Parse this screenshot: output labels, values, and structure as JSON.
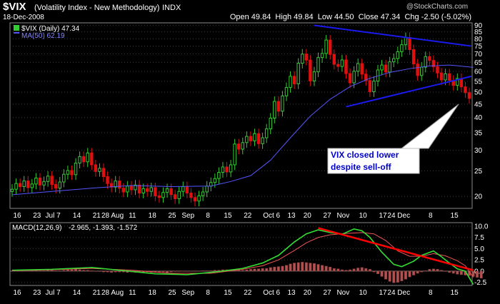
{
  "header": {
    "symbol": "$VIX",
    "name": "(Volatility Index - New Methodology)",
    "exchange": "INDX",
    "date": "18-Dec-2008",
    "watermark": "@StockCharts.com",
    "quote": "Open 49.84  High 49.84  Low 44.50  Close 47.34  Chg -2.50 (-5.02%)"
  },
  "legend": {
    "price_label": "$VIX (Daily) 47.34",
    "ma_label": "MA(50) 62.19",
    "macd_label": "MACD(12,26,9)",
    "macd_values": "-2.965, -1.393, -1.572"
  },
  "annotation": {
    "line1": "VIX closed lower",
    "line2": "despite sell-off"
  },
  "colors": {
    "background": "#000000",
    "up": "#33cc33",
    "down": "#e01010",
    "ma": "#5555ff",
    "trendline": "#1a1aee",
    "macd_line": "#33dd33",
    "signal_line": "#ee5555",
    "histogram": "#b35050",
    "macd_trend": "#ff0000",
    "grid": "#3a3a3a"
  },
  "chart_data": [
    {
      "type": "candlestick",
      "title": "$VIX (Daily) 47.34",
      "x_ticks": [
        "16",
        "23",
        "Jul 7",
        "14",
        "21",
        "28 Aug",
        "11",
        "18",
        "25",
        "Sep",
        "8",
        "15",
        "22",
        "Oct 6",
        "13",
        "20",
        "27",
        "Nov",
        "10",
        "17",
        "24 Dec",
        "8",
        "15"
      ],
      "y_scale": "log",
      "ylim": [
        18,
        92
      ],
      "y_ticks": [
        20,
        25,
        30,
        35,
        40,
        45,
        50,
        55,
        60,
        65,
        70,
        75,
        80,
        85,
        90
      ],
      "close": [
        21.3,
        22.4,
        21.8,
        22.9,
        21.6,
        22.3,
        23.5,
        22.1,
        22.8,
        23.9,
        22.2,
        21.5,
        22.7,
        24.3,
        25.1,
        24.2,
        26.8,
        28.4,
        27.1,
        29.3,
        26.4,
        24.9,
        25.6,
        23.8,
        22.4,
        21.7,
        22.9,
        21.5,
        20.8,
        21.9,
        21.2,
        22.1,
        20.6,
        21.4,
        20.9,
        21.6,
        20.1,
        19.8,
        20.7,
        21.4,
        20.3,
        19.6,
        20.9,
        21.8,
        20.6,
        19.8,
        19.2,
        20.1,
        20.8,
        21.9,
        22.6,
        23.4,
        24.7,
        25.9,
        24.8,
        26.4,
        31.7,
        30.3,
        32.1,
        33.9,
        32.6,
        34.7,
        31.8,
        33.5,
        36.2,
        39.8,
        46.1,
        42.3,
        48.4,
        52.1,
        57.5,
        53.8,
        64.5,
        69.9,
        66.3,
        55.2,
        59.8,
        67.8,
        70.3,
        79.1,
        69.7,
        63.9,
        62.7,
        66.4,
        58.9,
        54.3,
        60.1,
        64.3,
        58.6,
        55.4,
        50.2,
        55.1,
        60.8,
        63.5,
        59.7,
        65.3,
        67.2,
        71.4,
        75.9,
        80.9,
        72.7,
        64.1,
        57.9,
        62.3,
        68.4,
        66.1,
        62.5,
        59.2,
        55.7,
        58.8,
        55.5,
        53.1,
        56.4,
        52.4,
        49.8,
        47.34
      ],
      "ma": [
        {
          "i": 0,
          "v": 20.3
        },
        {
          "i": 10,
          "v": 20.9
        },
        {
          "i": 20,
          "v": 21.5
        },
        {
          "i": 30,
          "v": 22.0
        },
        {
          "i": 40,
          "v": 21.8
        },
        {
          "i": 50,
          "v": 21.9
        },
        {
          "i": 55,
          "v": 22.8
        },
        {
          "i": 60,
          "v": 24.0
        },
        {
          "i": 65,
          "v": 27.5
        },
        {
          "i": 70,
          "v": 33.5
        },
        {
          "i": 75,
          "v": 40.5
        },
        {
          "i": 80,
          "v": 47.0
        },
        {
          "i": 85,
          "v": 52.5
        },
        {
          "i": 90,
          "v": 56.5
        },
        {
          "i": 95,
          "v": 59.5
        },
        {
          "i": 100,
          "v": 61.5
        },
        {
          "i": 105,
          "v": 63.0
        },
        {
          "i": 110,
          "v": 63.5
        },
        {
          "i": 116,
          "v": 62.2
        }
      ]
    },
    {
      "type": "line",
      "title": "MACD(12,26,9)",
      "x_ticks": [
        "16",
        "23",
        "Jul 7",
        "14",
        "21",
        "28 Aug",
        "11",
        "18",
        "25",
        "Sep",
        "8",
        "15",
        "22",
        "Oct 6",
        "13",
        "20",
        "27",
        "Nov",
        "10",
        "17",
        "24 Dec",
        "8",
        "15"
      ],
      "ylim": [
        -3.2,
        10.8
      ],
      "y_ticks": [
        -2.5,
        0.0,
        2.5,
        5.0,
        7.5,
        10.0
      ],
      "series": [
        {
          "name": "MACD",
          "points": [
            [
              0,
              0.2
            ],
            [
              10,
              0.4
            ],
            [
              20,
              0.8
            ],
            [
              28,
              0.1
            ],
            [
              36,
              -0.6
            ],
            [
              44,
              -0.8
            ],
            [
              52,
              -0.1
            ],
            [
              58,
              0.6
            ],
            [
              63,
              1.8
            ],
            [
              67,
              3.5
            ],
            [
              71,
              6.5
            ],
            [
              74,
              8.3
            ],
            [
              77,
              9.2
            ],
            [
              80,
              8.6
            ],
            [
              83,
              8.2
            ],
            [
              86,
              9.4
            ],
            [
              88,
              9.0
            ],
            [
              90,
              7.5
            ],
            [
              93,
              4.2
            ],
            [
              96,
              1.5
            ],
            [
              98,
              1.0
            ],
            [
              101,
              2.2
            ],
            [
              103,
              3.5
            ],
            [
              106,
              4.5
            ],
            [
              108,
              3.2
            ],
            [
              110,
              1.8
            ],
            [
              112,
              0.5
            ],
            [
              114,
              0.0
            ],
            [
              115,
              -1.5
            ],
            [
              116,
              -2.965
            ]
          ]
        },
        {
          "name": "Signal",
          "points": [
            [
              0,
              0.1
            ],
            [
              10,
              0.3
            ],
            [
              20,
              0.6
            ],
            [
              30,
              0.2
            ],
            [
              40,
              -0.5
            ],
            [
              50,
              -0.5
            ],
            [
              58,
              0.4
            ],
            [
              63,
              1.2
            ],
            [
              67,
              2.5
            ],
            [
              71,
              4.6
            ],
            [
              74,
              6.3
            ],
            [
              77,
              7.5
            ],
            [
              80,
              8.1
            ],
            [
              84,
              8.4
            ],
            [
              88,
              8.6
            ],
            [
              91,
              8.3
            ],
            [
              94,
              6.8
            ],
            [
              97,
              4.5
            ],
            [
              100,
              3.3
            ],
            [
              103,
              3.3
            ],
            [
              106,
              3.9
            ],
            [
              109,
              3.4
            ],
            [
              112,
              2.3
            ],
            [
              114,
              1.2
            ],
            [
              116,
              -1.393
            ]
          ]
        }
      ],
      "histogram": [
        0.1,
        0.1,
        0.2,
        0.1,
        0.1,
        0.2,
        0.2,
        0.1,
        0.1,
        0.2,
        0.2,
        0.1,
        0.1,
        0.2,
        0.3,
        0.3,
        0.4,
        0.3,
        0.2,
        0.2,
        0.1,
        0.0,
        -0.1,
        -0.2,
        -0.2,
        -0.3,
        -0.2,
        -0.2,
        -0.2,
        -0.3,
        -0.2,
        -0.3,
        -0.3,
        -0.3,
        -0.2,
        -0.3,
        -0.3,
        -0.3,
        -0.2,
        -0.3,
        -0.2,
        -0.1,
        -0.1,
        0.0,
        0.0,
        0.0,
        0.0,
        0.0,
        0.1,
        0.1,
        0.1,
        0.2,
        0.2,
        0.3,
        0.3,
        0.3,
        0.3,
        0.2,
        0.2,
        0.3,
        0.4,
        0.5,
        0.5,
        0.6,
        0.6,
        0.8,
        0.9,
        1.0,
        1.1,
        1.3,
        1.6,
        1.8,
        1.9,
        2.0,
        1.9,
        1.8,
        1.7,
        1.5,
        1.3,
        1.1,
        0.9,
        0.6,
        0.5,
        0.3,
        0.2,
        0.3,
        0.5,
        0.7,
        0.8,
        0.6,
        0.4,
        -0.2,
        -0.6,
        -1.2,
        -1.8,
        -2.3,
        -2.6,
        -2.5,
        -2.2,
        -1.8,
        -1.3,
        -0.9,
        -0.5,
        -0.2,
        0.1,
        0.4,
        0.5,
        0.4,
        0.2,
        -0.1,
        -0.3,
        -0.5,
        -0.7,
        -0.8,
        -0.9,
        -1.0,
        -1.2,
        -1.4,
        -1.572
      ],
      "trendline": [
        [
          77,
          9.6
        ],
        [
          116,
          0.2
        ]
      ]
    }
  ]
}
